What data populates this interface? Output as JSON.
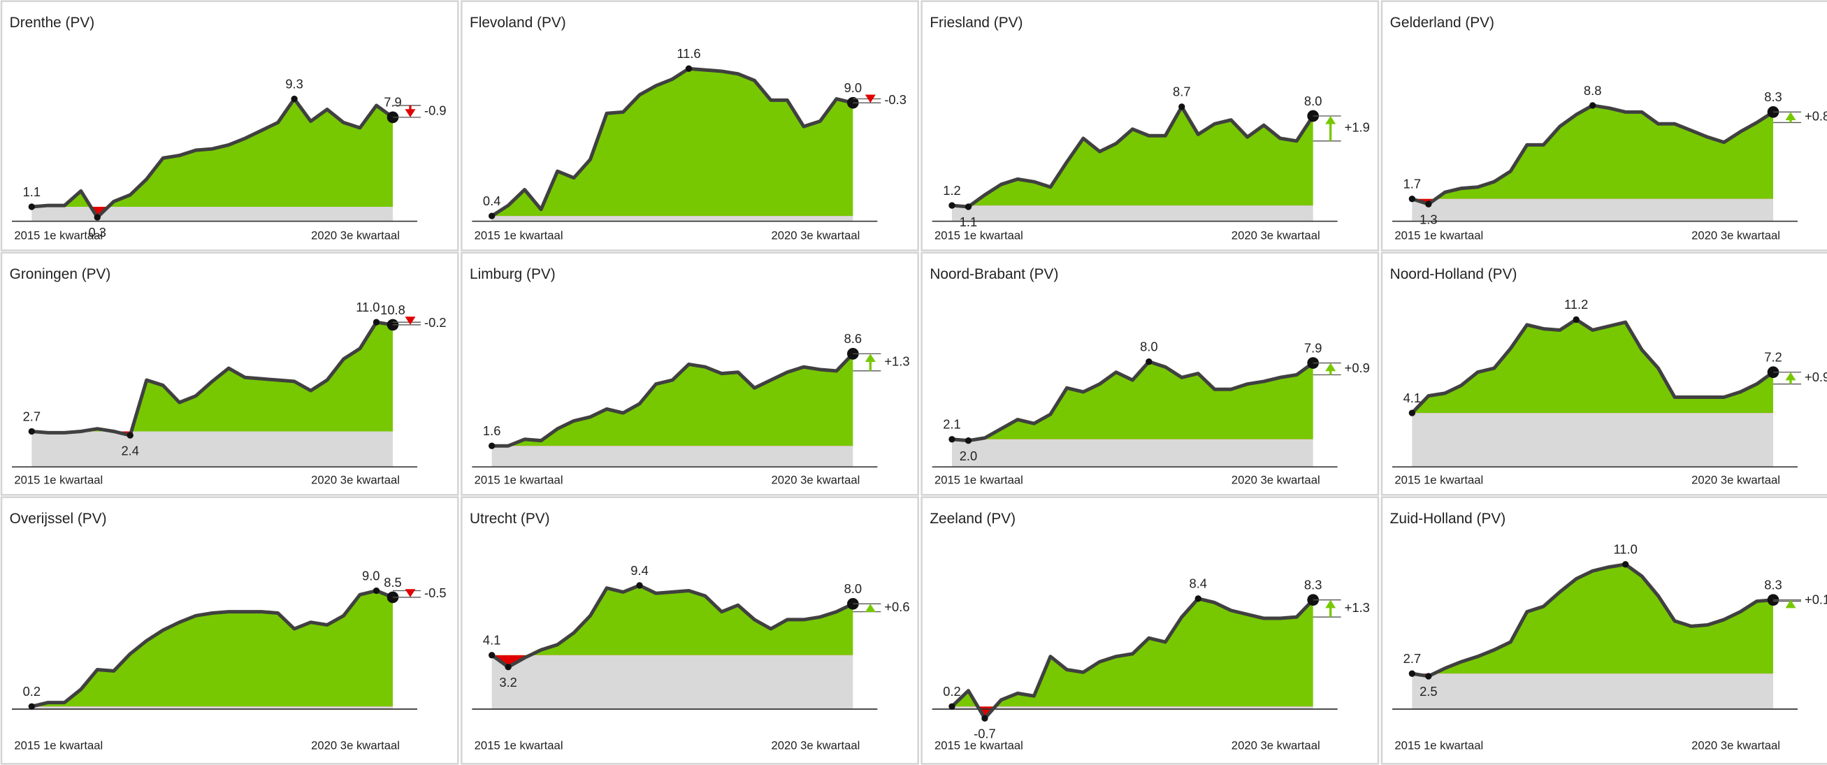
{
  "chart_data": [
    {
      "type": "area",
      "title": "Drenthe (PV)",
      "color": "#77c800",
      "negative_color": "#e00000",
      "baseline_color": "#d9d9d9",
      "line_color": "#404040",
      "categories": [
        "2015 1e kwartaal",
        null,
        null,
        null,
        null,
        null,
        null,
        null,
        null,
        null,
        null,
        null,
        null,
        null,
        null,
        null,
        null,
        null,
        null,
        null,
        null,
        null,
        "2020 3e kwartaal"
      ],
      "values": [
        1.1,
        1.2,
        1.2,
        2.3,
        0.3,
        1.5,
        2.0,
        3.2,
        4.8,
        5.0,
        5.4,
        5.5,
        5.8,
        6.3,
        6.9,
        7.5,
        9.3,
        7.6,
        8.5,
        7.5,
        7.1,
        8.8,
        7.9
      ],
      "value_labels": [
        "1.1",
        null,
        null,
        null,
        "0.3",
        null,
        null,
        null,
        null,
        null,
        null,
        null,
        null,
        null,
        null,
        null,
        "9.3",
        null,
        null,
        null,
        null,
        null,
        "7.9"
      ],
      "change": -0.9
    },
    {
      "type": "area",
      "title": "Flevoland (PV)",
      "color": "#77c800",
      "negative_color": "#e00000",
      "baseline_color": "#d9d9d9",
      "line_color": "#404040",
      "categories": [
        "2015 1e kwartaal",
        null,
        null,
        null,
        null,
        null,
        null,
        null,
        null,
        null,
        null,
        null,
        null,
        null,
        null,
        null,
        null,
        null,
        null,
        null,
        null,
        null,
        "2020 3e kwartaal"
      ],
      "values": [
        0.4,
        1.2,
        2.4,
        0.9,
        3.8,
        3.3,
        4.7,
        8.2,
        8.3,
        9.6,
        10.3,
        10.8,
        11.6,
        11.5,
        11.4,
        11.2,
        10.7,
        9.2,
        9.2,
        7.2,
        7.6,
        9.3,
        9.0
      ],
      "value_labels": [
        "0.4",
        null,
        null,
        null,
        null,
        null,
        null,
        null,
        null,
        null,
        null,
        null,
        "11.6",
        null,
        null,
        null,
        null,
        null,
        null,
        null,
        null,
        null,
        "9.0"
      ],
      "change": -0.3
    },
    {
      "type": "area",
      "title": "Friesland (PV)",
      "color": "#77c800",
      "negative_color": "#e00000",
      "baseline_color": "#d9d9d9",
      "line_color": "#404040",
      "categories": [
        "2015 1e kwartaal",
        null,
        null,
        null,
        null,
        null,
        null,
        null,
        null,
        null,
        null,
        null,
        null,
        null,
        null,
        null,
        null,
        null,
        null,
        null,
        null,
        null,
        "2020 3e kwartaal"
      ],
      "values": [
        1.2,
        1.1,
        2.0,
        2.8,
        3.2,
        3.0,
        2.6,
        4.5,
        6.3,
        5.3,
        5.9,
        7.0,
        6.5,
        6.5,
        8.7,
        6.6,
        7.4,
        7.7,
        6.4,
        7.3,
        6.3,
        6.1,
        8.0
      ],
      "value_labels": [
        "1.2",
        "1.1",
        null,
        null,
        null,
        null,
        null,
        null,
        null,
        null,
        null,
        null,
        null,
        null,
        "8.7",
        null,
        null,
        null,
        null,
        null,
        null,
        null,
        "8.0"
      ],
      "change": 1.9,
      "change_label": "+1.9"
    },
    {
      "type": "area",
      "title": "Gelderland (PV)",
      "color": "#77c800",
      "negative_color": "#e00000",
      "baseline_color": "#d9d9d9",
      "line_color": "#404040",
      "categories": [
        "2015 1e kwartaal",
        null,
        null,
        null,
        null,
        null,
        null,
        null,
        null,
        null,
        null,
        null,
        null,
        null,
        null,
        null,
        null,
        null,
        null,
        null,
        null,
        null,
        "2020 3e kwartaal"
      ],
      "values": [
        1.7,
        1.3,
        2.2,
        2.5,
        2.6,
        3.0,
        3.8,
        5.8,
        5.8,
        7.2,
        8.1,
        8.8,
        8.6,
        8.3,
        8.3,
        7.4,
        7.4,
        6.9,
        6.4,
        6.0,
        6.8,
        7.5,
        8.3
      ],
      "value_labels": [
        "1.7",
        "1.3",
        null,
        null,
        null,
        null,
        null,
        null,
        null,
        null,
        null,
        "8.8",
        null,
        null,
        null,
        null,
        null,
        null,
        null,
        null,
        null,
        null,
        "8.3"
      ],
      "change": 0.8,
      "change_label": "+0.8"
    },
    {
      "type": "area",
      "title": "Groningen (PV)",
      "color": "#77c800",
      "negative_color": "#e00000",
      "baseline_color": "#d9d9d9",
      "line_color": "#404040",
      "categories": [
        "2015 1e kwartaal",
        null,
        null,
        null,
        null,
        null,
        null,
        null,
        null,
        null,
        null,
        null,
        null,
        null,
        null,
        null,
        null,
        null,
        null,
        null,
        null,
        null,
        "2020 3e kwartaal"
      ],
      "values": [
        2.7,
        2.6,
        2.6,
        2.7,
        2.9,
        2.7,
        2.4,
        6.6,
        6.2,
        4.9,
        5.4,
        6.5,
        7.5,
        6.8,
        6.7,
        6.6,
        6.5,
        5.8,
        6.6,
        8.2,
        9.0,
        11.0,
        10.8
      ],
      "value_labels": [
        "2.7",
        null,
        null,
        null,
        null,
        null,
        "2.4",
        null,
        null,
        null,
        null,
        null,
        null,
        null,
        null,
        null,
        null,
        null,
        null,
        null,
        null,
        "11.0",
        "10.8"
      ],
      "change": -0.2
    },
    {
      "type": "area",
      "title": "Limburg (PV)",
      "color": "#77c800",
      "negative_color": "#e00000",
      "baseline_color": "#d9d9d9",
      "line_color": "#404040",
      "categories": [
        "2015 1e kwartaal",
        null,
        null,
        null,
        null,
        null,
        null,
        null,
        null,
        null,
        null,
        null,
        null,
        null,
        null,
        null,
        null,
        null,
        null,
        null,
        null,
        null,
        "2020 3e kwartaal"
      ],
      "values": [
        1.6,
        1.6,
        2.1,
        2.0,
        2.9,
        3.5,
        3.8,
        4.4,
        4.1,
        4.8,
        6.3,
        6.6,
        7.8,
        7.6,
        7.1,
        7.2,
        6.0,
        6.6,
        7.2,
        7.6,
        7.4,
        7.3,
        8.6
      ],
      "value_labels": [
        "1.6",
        null,
        null,
        null,
        null,
        null,
        null,
        null,
        null,
        null,
        null,
        null,
        null,
        null,
        null,
        null,
        null,
        null,
        null,
        null,
        null,
        null,
        "8.6"
      ],
      "change": 1.3,
      "change_label": "+1.3"
    },
    {
      "type": "area",
      "title": "Noord-Brabant (PV)",
      "color": "#77c800",
      "negative_color": "#e00000",
      "baseline_color": "#d9d9d9",
      "line_color": "#404040",
      "categories": [
        "2015 1e kwartaal",
        null,
        null,
        null,
        null,
        null,
        null,
        null,
        null,
        null,
        null,
        null,
        null,
        null,
        null,
        null,
        null,
        null,
        null,
        null,
        null,
        null,
        "2020 3e kwartaal"
      ],
      "values": [
        2.1,
        2.0,
        2.2,
        2.9,
        3.6,
        3.3,
        4.0,
        6.0,
        5.7,
        6.3,
        7.2,
        6.6,
        8.0,
        7.6,
        6.8,
        7.1,
        5.9,
        5.9,
        6.3,
        6.5,
        6.8,
        7.0,
        7.9
      ],
      "value_labels": [
        "2.1",
        "2.0",
        null,
        null,
        null,
        null,
        null,
        null,
        null,
        null,
        null,
        null,
        "8.0",
        null,
        null,
        null,
        null,
        null,
        null,
        null,
        null,
        null,
        "7.9"
      ],
      "change": 0.9,
      "change_label": "+0.9"
    },
    {
      "type": "area",
      "title": "Noord-Holland (PV)",
      "color": "#77c800",
      "negative_color": "#e00000",
      "baseline_color": "#d9d9d9",
      "line_color": "#404040",
      "categories": [
        "2015 1e kwartaal",
        null,
        null,
        null,
        null,
        null,
        null,
        null,
        null,
        null,
        null,
        null,
        null,
        null,
        null,
        null,
        null,
        null,
        null,
        null,
        null,
        null,
        "2020 3e kwartaal"
      ],
      "values": [
        4.1,
        5.4,
        5.6,
        6.2,
        7.2,
        7.5,
        9.0,
        10.8,
        10.5,
        10.4,
        11.2,
        10.4,
        10.7,
        11.0,
        8.9,
        7.5,
        5.3,
        5.3,
        5.3,
        5.3,
        5.7,
        6.3,
        7.2
      ],
      "value_labels": [
        "4.1",
        null,
        null,
        null,
        null,
        null,
        null,
        null,
        null,
        null,
        "11.2",
        null,
        null,
        null,
        null,
        null,
        null,
        null,
        null,
        null,
        null,
        null,
        "7.2"
      ],
      "change": 0.9,
      "change_label": "+0.9"
    },
    {
      "type": "area",
      "title": "Overijssel (PV)",
      "color": "#77c800",
      "negative_color": "#e00000",
      "baseline_color": "#d9d9d9",
      "line_color": "#404040",
      "categories": [
        "2015 1e kwartaal",
        null,
        null,
        null,
        null,
        null,
        null,
        null,
        null,
        null,
        null,
        null,
        null,
        null,
        null,
        null,
        null,
        null,
        null,
        null,
        null,
        null,
        "2020 3e kwartaal"
      ],
      "values": [
        0.2,
        0.5,
        0.5,
        1.5,
        3.0,
        2.9,
        4.2,
        5.2,
        6.0,
        6.6,
        7.1,
        7.3,
        7.4,
        7.4,
        7.4,
        7.3,
        6.1,
        6.6,
        6.4,
        7.1,
        8.7,
        9.0,
        8.5
      ],
      "value_labels": [
        "0.2",
        null,
        null,
        null,
        null,
        null,
        null,
        null,
        null,
        null,
        null,
        null,
        null,
        null,
        null,
        null,
        null,
        null,
        null,
        null,
        null,
        "9.0",
        "8.5"
      ],
      "change": -0.5
    },
    {
      "type": "area",
      "title": "Utrecht (PV)",
      "color": "#77c800",
      "negative_color": "#e00000",
      "baseline_color": "#d9d9d9",
      "line_color": "#404040",
      "categories": [
        "2015 1e kwartaal",
        null,
        null,
        null,
        null,
        null,
        null,
        null,
        null,
        null,
        null,
        null,
        null,
        null,
        null,
        null,
        null,
        null,
        null,
        null,
        null,
        null,
        "2020 3e kwartaal"
      ],
      "values": [
        4.1,
        3.2,
        3.9,
        4.5,
        4.9,
        5.8,
        7.1,
        9.2,
        8.9,
        9.4,
        8.8,
        8.9,
        9.0,
        8.6,
        7.4,
        7.9,
        6.8,
        6.1,
        6.8,
        6.8,
        7.0,
        7.4,
        8.0
      ],
      "value_labels": [
        "4.1",
        "3.2",
        null,
        null,
        null,
        null,
        null,
        null,
        null,
        "9.4",
        null,
        null,
        null,
        null,
        null,
        null,
        null,
        null,
        null,
        null,
        null,
        null,
        "8.0"
      ],
      "change": 0.6,
      "change_label": "+0.6"
    },
    {
      "type": "area",
      "title": "Zeeland (PV)",
      "color": "#77c800",
      "negative_color": "#e00000",
      "baseline_color": "#d9d9d9",
      "line_color": "#404040",
      "categories": [
        "2015 1e kwartaal",
        null,
        null,
        null,
        null,
        null,
        null,
        null,
        null,
        null,
        null,
        null,
        null,
        null,
        null,
        null,
        null,
        null,
        null,
        null,
        null,
        null,
        "2020 3e kwartaal"
      ],
      "values": [
        0.2,
        1.4,
        -0.7,
        0.7,
        1.2,
        1.0,
        4.0,
        3.0,
        2.8,
        3.6,
        4.0,
        4.2,
        5.4,
        5.1,
        7.0,
        8.4,
        8.1,
        7.5,
        7.2,
        6.9,
        6.9,
        7.0,
        8.3
      ],
      "value_labels": [
        "0.2",
        null,
        "-0.7",
        null,
        null,
        null,
        null,
        null,
        null,
        null,
        null,
        null,
        null,
        null,
        null,
        "8.4",
        null,
        null,
        null,
        null,
        null,
        null,
        "8.3"
      ],
      "change": 1.3,
      "change_label": "+1.3"
    },
    {
      "type": "area",
      "title": "Zuid-Holland (PV)",
      "color": "#77c800",
      "negative_color": "#e00000",
      "baseline_color": "#d9d9d9",
      "line_color": "#404040",
      "categories": [
        "2015 1e kwartaal",
        null,
        null,
        null,
        null,
        null,
        null,
        null,
        null,
        null,
        null,
        null,
        null,
        null,
        null,
        null,
        null,
        null,
        null,
        null,
        null,
        null,
        "2020 3e kwartaal"
      ],
      "values": [
        2.7,
        2.5,
        3.1,
        3.6,
        4.0,
        4.5,
        5.1,
        7.4,
        7.8,
        8.9,
        9.9,
        10.5,
        10.8,
        11.0,
        10.1,
        8.6,
        6.7,
        6.3,
        6.4,
        6.8,
        7.4,
        8.2,
        8.3
      ],
      "value_labels": [
        "2.7",
        "2.5",
        null,
        null,
        null,
        null,
        null,
        null,
        null,
        null,
        null,
        null,
        null,
        "11.0",
        null,
        null,
        null,
        null,
        null,
        null,
        null,
        null,
        "8.3"
      ],
      "change": 0.1,
      "change_label": "+0.1"
    }
  ]
}
